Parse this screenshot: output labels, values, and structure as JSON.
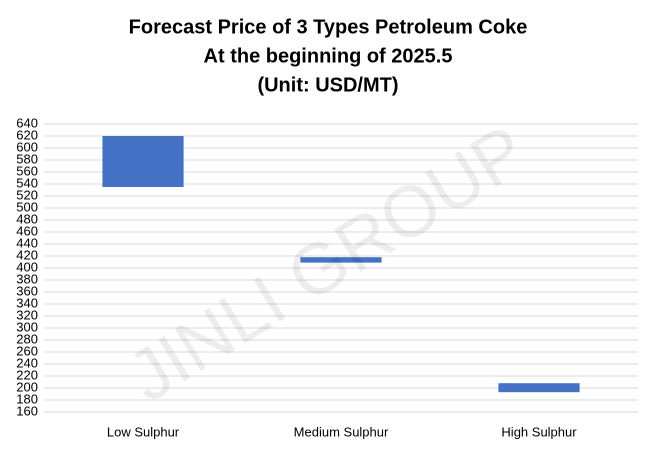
{
  "chart_data": {
    "type": "floating_bar",
    "title": [
      "Forecast Price of 3 Types Petroleum Coke",
      "At the beginning of 2025.5",
      "(Unit: USD/MT)"
    ],
    "watermark": "JINLI GROUP",
    "categories": [
      "Low Sulphur",
      "Medium Sulphur",
      "High Sulphur"
    ],
    "low": [
      535,
      409,
      193
    ],
    "high": [
      620,
      418,
      208
    ],
    "color": "#4472c4",
    "ylim": [
      160,
      640
    ],
    "yticks": [
      160,
      180,
      200,
      220,
      240,
      260,
      280,
      300,
      320,
      340,
      360,
      380,
      400,
      420,
      440,
      460,
      480,
      500,
      520,
      540,
      560,
      580,
      600,
      620,
      640
    ],
    "grid": true
  }
}
